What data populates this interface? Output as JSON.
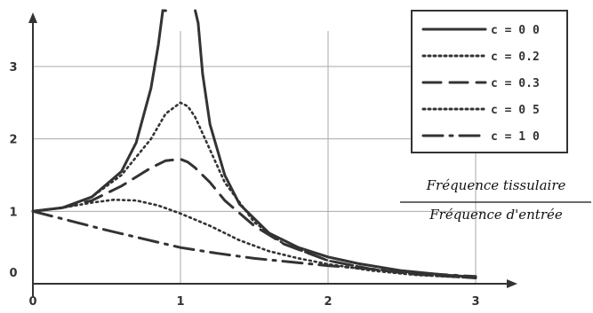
{
  "chart_data": {
    "type": "line",
    "xlabel": "",
    "ylabel": "",
    "ylabel_lines": [
      "Fréquence tissulaire",
      "Fréquence d'entrée"
    ],
    "xlim": [
      0,
      3
    ],
    "ylim": [
      0,
      3.5
    ],
    "xticks": [
      0,
      1,
      2,
      3
    ],
    "yticks": [
      0,
      1,
      2,
      3
    ],
    "grid": true,
    "legend_placement": "top-right",
    "series": [
      {
        "name": "c = 0 0",
        "dash": "solid",
        "x": [
          0,
          0.2,
          0.4,
          0.6,
          0.7,
          0.8,
          0.85,
          0.88,
          0.9
        ],
        "y": [
          1.0,
          1.05,
          1.2,
          1.55,
          1.95,
          2.7,
          3.3,
          3.8,
          4.2
        ]
      },
      {
        "name": "c = 0 0",
        "dash": "solid",
        "x": [
          1.1,
          1.12,
          1.15,
          1.2,
          1.3,
          1.4,
          1.6,
          1.8,
          2.0,
          2.2,
          2.5,
          2.8,
          3.0
        ],
        "y": [
          4.2,
          3.6,
          2.9,
          2.2,
          1.5,
          1.1,
          0.7,
          0.5,
          0.37,
          0.28,
          0.18,
          0.12,
          0.09
        ]
      },
      {
        "name": "c = 0.2",
        "dash": "dot",
        "x": [
          0,
          0.2,
          0.4,
          0.6,
          0.8,
          0.9,
          1.0,
          1.05,
          1.1,
          1.2,
          1.3,
          1.5,
          1.7,
          2.0,
          2.3,
          2.6,
          3.0
        ],
        "y": [
          1.0,
          1.05,
          1.2,
          1.5,
          2.0,
          2.35,
          2.5,
          2.45,
          2.3,
          1.85,
          1.4,
          0.85,
          0.55,
          0.32,
          0.2,
          0.13,
          0.08
        ]
      },
      {
        "name": "c = 0.3",
        "dash": "longdash",
        "x": [
          0,
          0.2,
          0.4,
          0.6,
          0.8,
          0.9,
          1.0,
          1.05,
          1.1,
          1.2,
          1.3,
          1.5,
          1.7,
          2.0,
          2.3,
          2.6,
          3.0
        ],
        "y": [
          1.0,
          1.05,
          1.15,
          1.35,
          1.6,
          1.7,
          1.72,
          1.68,
          1.6,
          1.4,
          1.15,
          0.8,
          0.55,
          0.32,
          0.2,
          0.13,
          0.08
        ]
      },
      {
        "name": "c = 0 5",
        "dash": "dot",
        "x": [
          0,
          0.2,
          0.4,
          0.55,
          0.7,
          0.85,
          1.0,
          1.2,
          1.4,
          1.6,
          1.8,
          2.0,
          2.3,
          2.6,
          3.0
        ],
        "y": [
          1.0,
          1.05,
          1.12,
          1.16,
          1.15,
          1.08,
          0.97,
          0.8,
          0.6,
          0.45,
          0.35,
          0.27,
          0.18,
          0.12,
          0.08
        ]
      },
      {
        "name": "c = 1 0",
        "dash": "dashdot",
        "x": [
          0,
          0.25,
          0.5,
          0.75,
          1.0,
          1.25,
          1.5,
          1.75,
          2.0,
          2.25,
          2.5,
          2.75,
          3.0
        ],
        "y": [
          1.0,
          0.87,
          0.74,
          0.62,
          0.5,
          0.42,
          0.35,
          0.3,
          0.25,
          0.21,
          0.17,
          0.13,
          0.1
        ]
      }
    ]
  }
}
